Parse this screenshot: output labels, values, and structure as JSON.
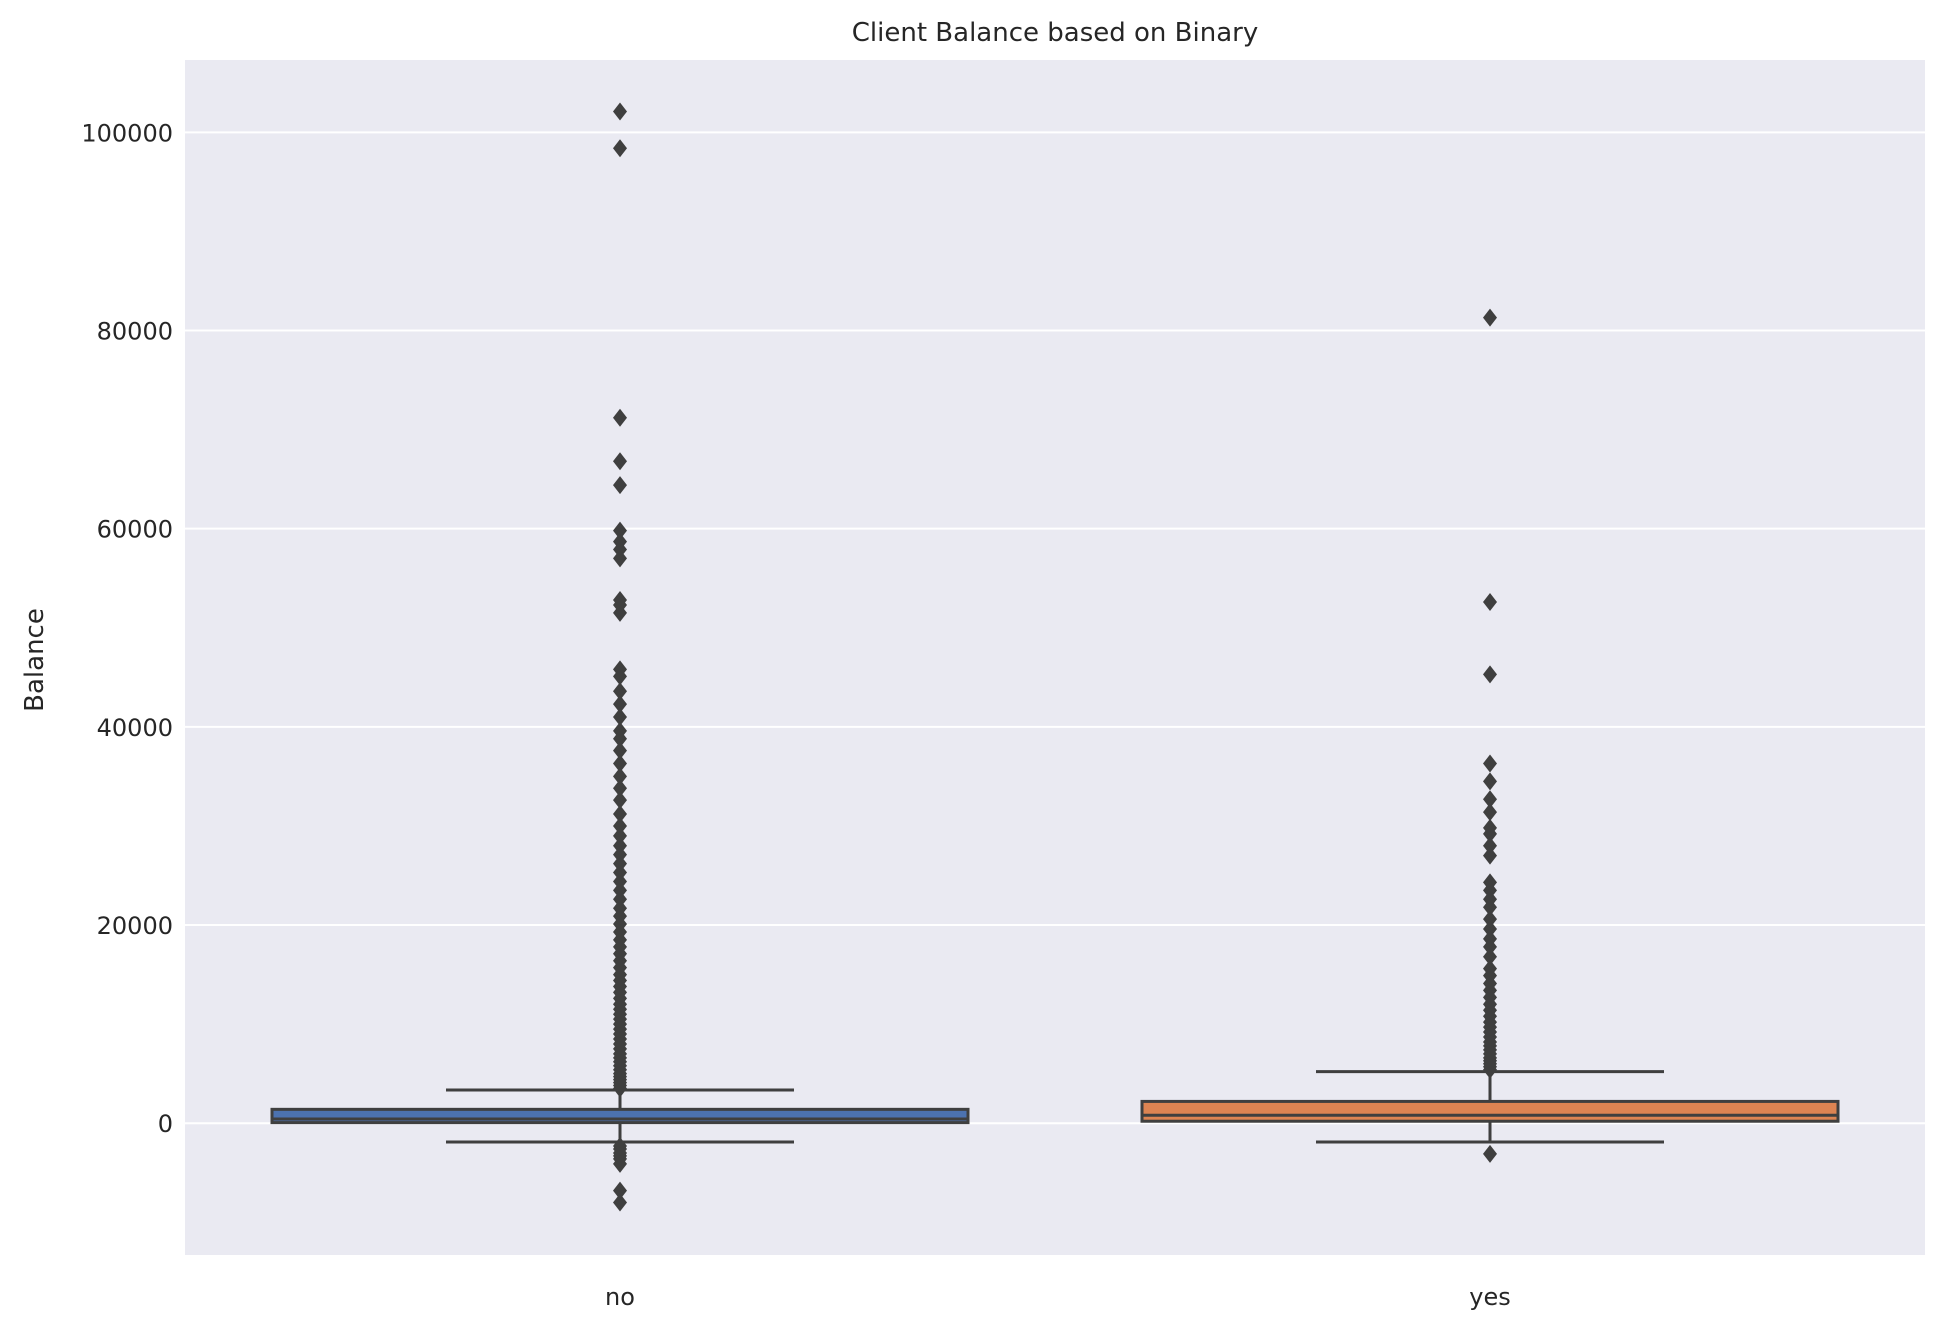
{
  "chart_data": {
    "type": "box",
    "title": "Client Balance based on Binary",
    "xlabel": "",
    "ylabel": "Balance",
    "ylim": [
      -13300,
      107300
    ],
    "yticks": [
      0,
      20000,
      40000,
      60000,
      80000,
      100000
    ],
    "ytick_labels": [
      "0",
      "20000",
      "40000",
      "60000",
      "80000",
      "100000"
    ],
    "grid": true,
    "colors": {
      "background": "#eaeaf2",
      "grid": "#ffffff",
      "box_edge": "#3f3f3f",
      "text": "#262626"
    },
    "categories": [
      "no",
      "yes"
    ],
    "series": [
      {
        "category": "no",
        "color": "#4c72b0",
        "whisker_low": -1900,
        "q1": 60,
        "median": 420,
        "q3": 1400,
        "whisker_high": 3350,
        "outliers_low": [
          -2300,
          -2600,
          -3000,
          -3300,
          -3600,
          -4100,
          -6800,
          -8000
        ],
        "outliers_high": [
          3500,
          3800,
          4100,
          4400,
          4700,
          5000,
          5400,
          5800,
          6200,
          6600,
          7000,
          7500,
          8000,
          8500,
          9000,
          9500,
          10000,
          10500,
          11000,
          11500,
          12000,
          12600,
          13200,
          13800,
          14400,
          15000,
          15700,
          16400,
          17100,
          17800,
          18500,
          19300,
          20100,
          20900,
          21700,
          22600,
          23500,
          24400,
          25300,
          26200,
          27100,
          28000,
          29000,
          30000,
          31200,
          32600,
          33800,
          35000,
          36300,
          37600,
          38800,
          39600,
          41000,
          42300,
          43600,
          45100,
          45800,
          51500,
          52300,
          52800,
          57000,
          57900,
          58700,
          59800,
          64400,
          66800,
          71200,
          98400,
          102100
        ]
      },
      {
        "category": "yes",
        "color": "#dd8452",
        "whisker_low": -1900,
        "q1": 200,
        "median": 800,
        "q3": 2200,
        "whisker_high": 5200,
        "outliers_low": [
          -3100
        ],
        "outliers_high": [
          5400,
          5700,
          6000,
          6300,
          6600,
          7000,
          7400,
          7800,
          8200,
          8700,
          9200,
          9700,
          10200,
          10800,
          11400,
          12000,
          12700,
          13400,
          14100,
          14900,
          15600,
          16800,
          17800,
          18600,
          19600,
          20600,
          21800,
          22600,
          23500,
          24300,
          27000,
          28000,
          29200,
          29800,
          31400,
          32700,
          34500,
          36300,
          45300,
          52600,
          81300
        ]
      }
    ]
  }
}
